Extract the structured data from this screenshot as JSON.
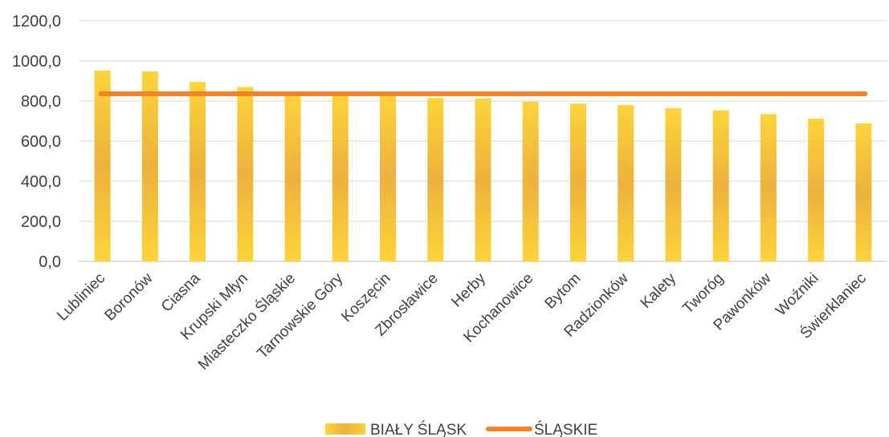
{
  "chart_data": {
    "type": "bar",
    "categories": [
      "Lubliniec",
      "Boronów",
      "Ciasna",
      "Krupski Młyn",
      "Miasteczko Śląskie",
      "Tarnowskie Góry",
      "Koszęcin",
      "Zbrosławice",
      "Herby",
      "Kochanowice",
      "Bytom",
      "Radzionków",
      "Kalety",
      "Tworóg",
      "Pawonków",
      "Woźniki",
      "Świerklaniec"
    ],
    "series": [
      {
        "name": "BIAŁY ŚLĄSK",
        "kind": "bar",
        "color": "#F7C431",
        "values": [
          952,
          948,
          895,
          870,
          840,
          840,
          840,
          815,
          813,
          797,
          787,
          780,
          764,
          753,
          735,
          712,
          688
        ]
      },
      {
        "name": "ŚLĄSKIE",
        "kind": "line",
        "color": "#F5822A",
        "values": [
          836,
          836,
          836,
          836,
          836,
          836,
          836,
          836,
          836,
          836,
          836,
          836,
          836,
          836,
          836,
          836,
          836
        ]
      }
    ],
    "yticks": [
      "0,0",
      "200,0",
      "400,0",
      "600,0",
      "800,0",
      "1000,0",
      "1200,0"
    ],
    "ylim": [
      0,
      1200
    ],
    "grid": true,
    "legend_position": "bottom",
    "title": "",
    "xlabel": "",
    "ylabel": ""
  }
}
